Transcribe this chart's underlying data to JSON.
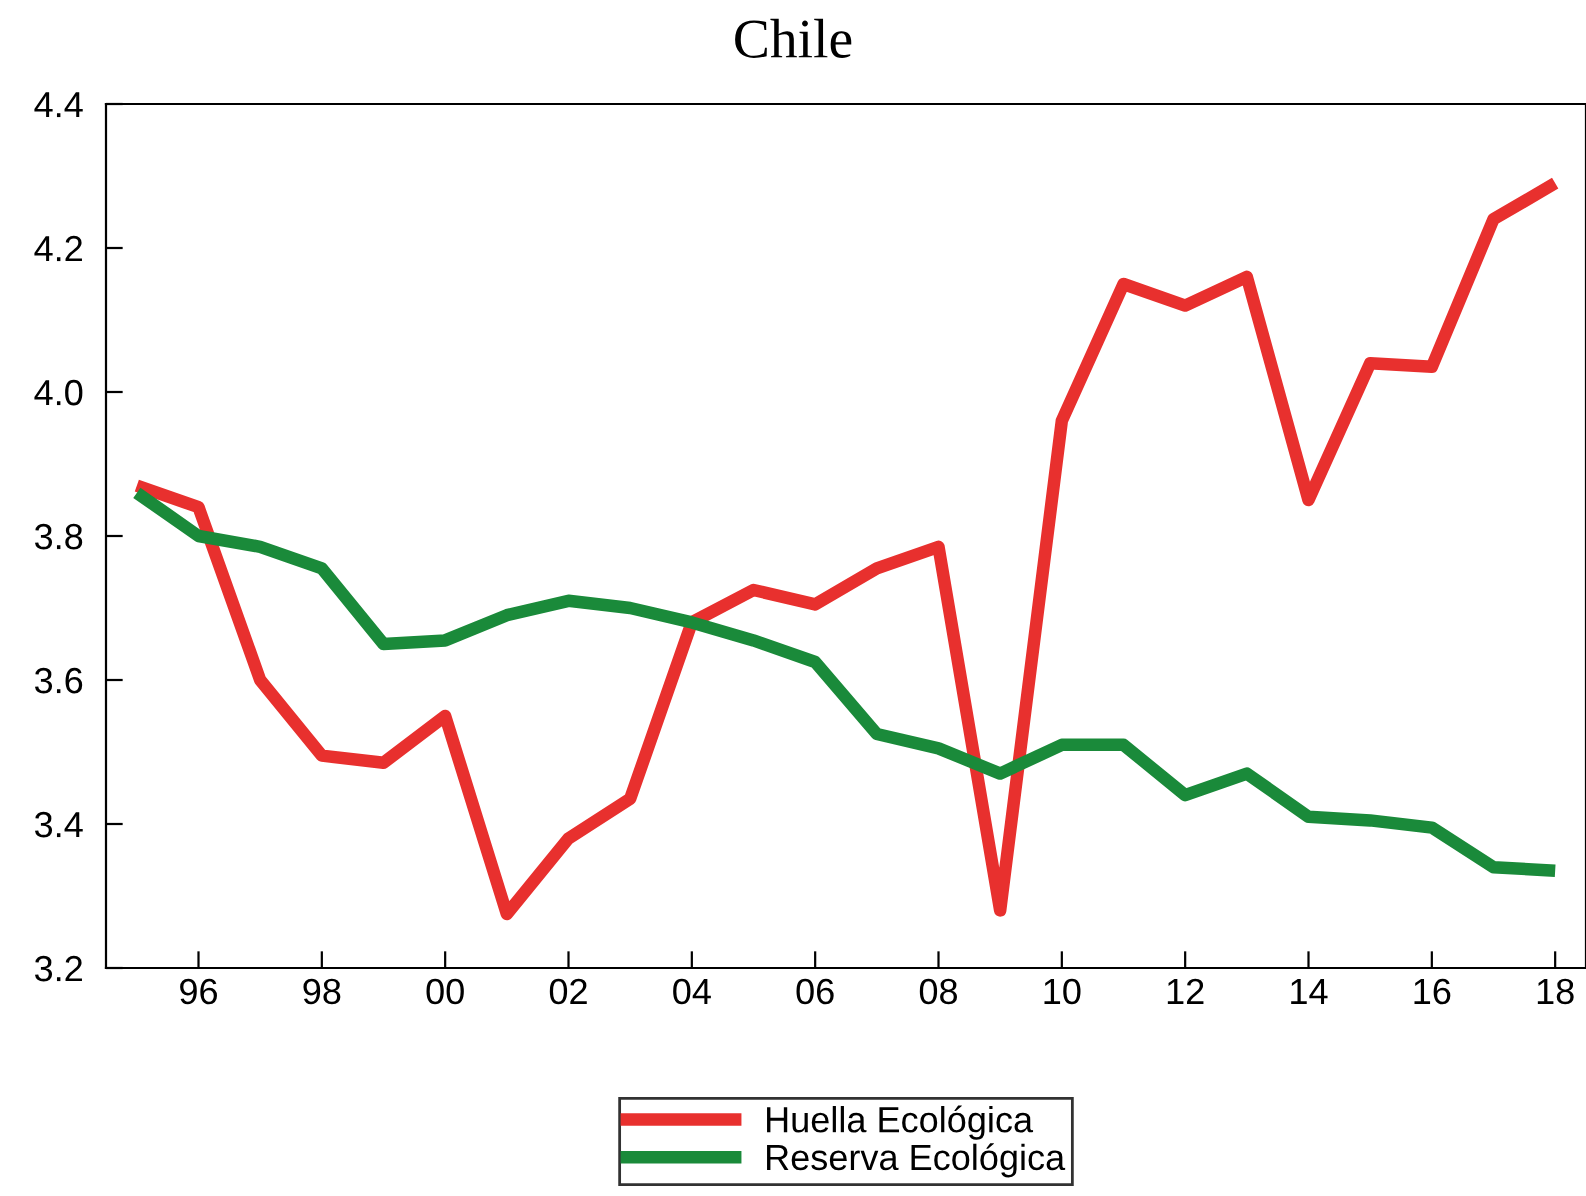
{
  "chart_data": {
    "type": "line",
    "title": "Chile",
    "x": [
      1995,
      1996,
      1997,
      1998,
      1999,
      2000,
      2001,
      2002,
      2003,
      2004,
      2005,
      2006,
      2007,
      2008,
      2009,
      2010,
      2011,
      2012,
      2013,
      2014,
      2015,
      2016,
      2017,
      2018
    ],
    "series": [
      {
        "name": "Huella Ecológica",
        "color": "#e8302e",
        "values": [
          3.87,
          3.84,
          3.6,
          3.495,
          3.485,
          3.55,
          3.275,
          3.38,
          3.435,
          3.68,
          3.725,
          3.705,
          3.755,
          3.785,
          3.28,
          3.96,
          4.15,
          4.12,
          4.16,
          3.85,
          4.04,
          4.035,
          4.24,
          4.29
        ]
      },
      {
        "name": "Reserva Ecológica",
        "color": "#1a8a3a",
        "values": [
          3.86,
          3.8,
          3.785,
          3.755,
          3.65,
          3.655,
          3.69,
          3.71,
          3.7,
          3.68,
          3.655,
          3.625,
          3.525,
          3.505,
          3.47,
          3.51,
          3.51,
          3.44,
          3.47,
          3.41,
          3.405,
          3.395,
          3.34,
          3.335
        ]
      }
    ],
    "xlim": [
      1994.5,
      2018.5
    ],
    "xticks": [
      {
        "value": 1996,
        "label": "96"
      },
      {
        "value": 1998,
        "label": "98"
      },
      {
        "value": 2000,
        "label": "00"
      },
      {
        "value": 2002,
        "label": "02"
      },
      {
        "value": 2004,
        "label": "04"
      },
      {
        "value": 2006,
        "label": "06"
      },
      {
        "value": 2008,
        "label": "08"
      },
      {
        "value": 2010,
        "label": "10"
      },
      {
        "value": 2012,
        "label": "12"
      },
      {
        "value": 2014,
        "label": "14"
      },
      {
        "value": 2016,
        "label": "16"
      },
      {
        "value": 2018,
        "label": "18"
      }
    ],
    "ylim": [
      3.2,
      4.4
    ],
    "yticks": [
      3.2,
      3.4,
      3.6,
      3.8,
      {
        "value": 4.0,
        "label": "4.0"
      },
      4.2,
      4.4
    ],
    "grid": false,
    "legend": "bottom",
    "marker": "none",
    "line_style": "solid"
  }
}
